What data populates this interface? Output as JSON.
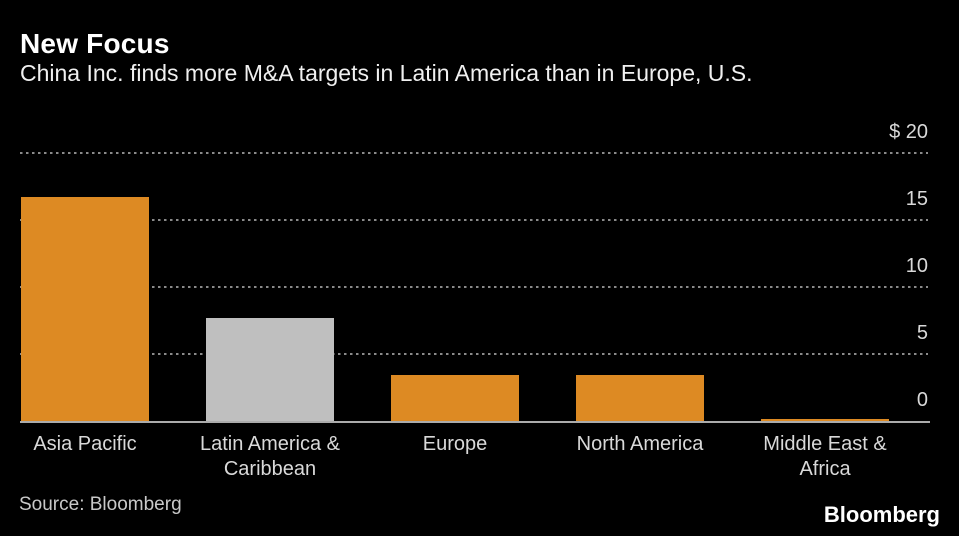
{
  "header": {
    "title": "New Focus",
    "subtitle": "China Inc. finds more M&A targets in Latin America than in Europe, U.S."
  },
  "footer": {
    "source": "Source: Bloomberg",
    "brand": "Bloomberg"
  },
  "colors": {
    "background": "#000000",
    "bar_orange": "#dd8a23",
    "bar_gray": "#bfbfbf",
    "gridline": "#8a8a8a",
    "baseline": "#ababab",
    "tick_text": "#d9d9d9",
    "category_text": "#d9d9d9",
    "title_text": "#ffffff",
    "subtitle_text": "#f0f0f0",
    "source_text": "#c9c9c9"
  },
  "chart_data": {
    "type": "bar",
    "title": "New Focus",
    "subtitle": "China Inc. finds more M&A targets in Latin America than in Europe, U.S.",
    "categories": [
      "Asia Pacific",
      "Latin America & Caribbean",
      "Europe",
      "North America",
      "Middle East & Africa"
    ],
    "category_lines": [
      [
        "Asia Pacific"
      ],
      [
        "Latin America &",
        "Caribbean"
      ],
      [
        "Europe"
      ],
      [
        "North America"
      ],
      [
        "Middle East &",
        "Africa"
      ]
    ],
    "values": [
      16.7,
      7.7,
      3.4,
      3.4,
      0.15
    ],
    "bar_colors": [
      "#dd8a23",
      "#bfbfbf",
      "#dd8a23",
      "#dd8a23",
      "#dd8a23"
    ],
    "ylim": [
      0,
      20
    ],
    "yticks": [
      {
        "value": 0,
        "label": "0"
      },
      {
        "value": 5,
        "label": "5"
      },
      {
        "value": 10,
        "label": "10"
      },
      {
        "value": 15,
        "label": "15"
      },
      {
        "value": 20,
        "label": "$ 20"
      }
    ],
    "unit_prefix": "$",
    "axis_side": "right",
    "grid": "dotted horizontal",
    "legend": "none",
    "source": "Source: Bloomberg"
  }
}
